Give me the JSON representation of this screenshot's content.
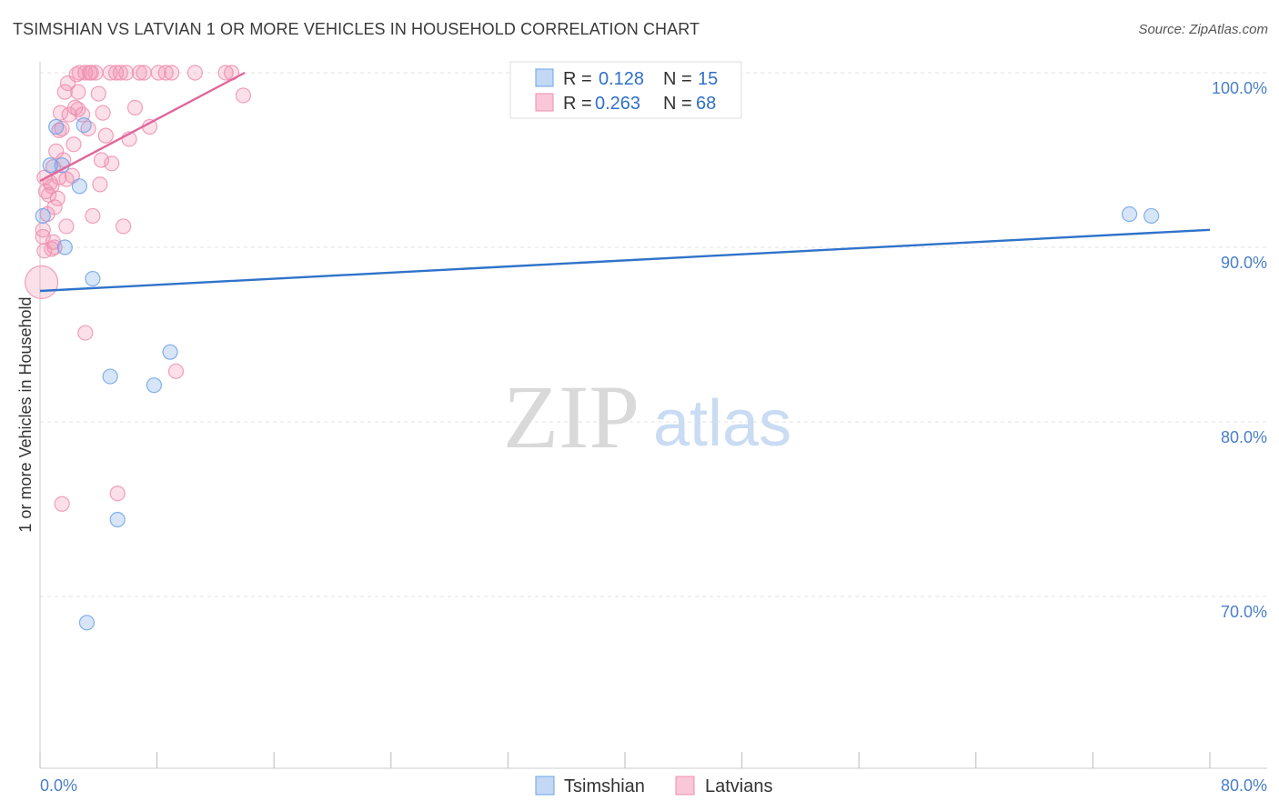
{
  "title": "TSIMSHIAN VS LATVIAN 1 OR MORE VEHICLES IN HOUSEHOLD CORRELATION CHART",
  "source": "Source: ZipAtlas.com",
  "watermark": {
    "zip": "ZIP",
    "atlas": "atlas"
  },
  "colors": {
    "tsimshian": "#6fa3e6",
    "latvians": "#ef8fb0",
    "tsimshian_line": "#2f73c9",
    "latvians_line": "#e0679a"
  },
  "chart_data": {
    "type": "scatter",
    "ylabel": "1 or more Vehicles in Household",
    "xlim": [
      0,
      80
    ],
    "ylim": [
      60,
      100
    ],
    "x_tick_labels": [
      "0.0%",
      "80.0%"
    ],
    "y_ticks": [
      {
        "value": 100,
        "label": "100.0%"
      },
      {
        "value": 90,
        "label": "90.0%"
      },
      {
        "value": 80,
        "label": "80.0%"
      },
      {
        "value": 70,
        "label": "70.0%"
      }
    ],
    "grid": true,
    "legend": {
      "position": "top-center",
      "entries": [
        {
          "r_label": "R =",
          "r_value": "0.128",
          "n_label": "N =",
          "n_value": "15"
        },
        {
          "r_label": "R =",
          "r_value": "0.263",
          "n_label": "N =",
          "n_value": "68"
        }
      ]
    },
    "series": [
      {
        "name": "Tsimshian",
        "trend": [
          [
            0,
            87.5
          ],
          [
            80,
            91.0
          ]
        ],
        "points": [
          [
            0.2,
            91.8
          ],
          [
            0.7,
            94.7
          ],
          [
            1.1,
            96.9
          ],
          [
            1.5,
            94.7
          ],
          [
            1.7,
            90.0
          ],
          [
            2.7,
            93.5
          ],
          [
            3.0,
            97.0
          ],
          [
            3.6,
            88.2
          ],
          [
            4.8,
            82.6
          ],
          [
            5.3,
            74.4
          ],
          [
            7.8,
            82.1
          ],
          [
            8.9,
            84.0
          ],
          [
            3.2,
            68.5
          ],
          [
            74.5,
            91.9
          ],
          [
            76.0,
            91.8
          ]
        ]
      },
      {
        "name": "Latvians",
        "trend": [
          [
            0,
            93.8
          ],
          [
            14,
            100.0
          ]
        ],
        "points": [
          [
            0.1,
            88.0
          ],
          [
            0.2,
            91.0
          ],
          [
            0.3,
            89.8
          ],
          [
            0.4,
            93.2
          ],
          [
            0.5,
            91.9
          ],
          [
            0.6,
            93.0
          ],
          [
            0.7,
            93.7
          ],
          [
            0.8,
            89.9
          ],
          [
            0.9,
            90.3
          ],
          [
            1.0,
            90.0
          ],
          [
            1.1,
            95.5
          ],
          [
            1.2,
            92.8
          ],
          [
            1.3,
            94.0
          ],
          [
            1.4,
            97.7
          ],
          [
            1.5,
            96.8
          ],
          [
            1.6,
            95.0
          ],
          [
            1.7,
            98.9
          ],
          [
            1.8,
            93.9
          ],
          [
            1.9,
            99.4
          ],
          [
            2.0,
            97.6
          ],
          [
            2.2,
            94.1
          ],
          [
            2.3,
            95.9
          ],
          [
            2.4,
            98.0
          ],
          [
            2.5,
            99.9
          ],
          [
            2.6,
            98.9
          ],
          [
            2.7,
            100.0
          ],
          [
            2.9,
            97.6
          ],
          [
            3.1,
            100.0
          ],
          [
            3.3,
            96.8
          ],
          [
            3.5,
            100.0
          ],
          [
            3.6,
            91.8
          ],
          [
            3.8,
            100.0
          ],
          [
            4.0,
            98.8
          ],
          [
            4.1,
            93.6
          ],
          [
            4.2,
            95.0
          ],
          [
            4.3,
            97.7
          ],
          [
            4.5,
            96.4
          ],
          [
            4.8,
            100.0
          ],
          [
            4.9,
            94.8
          ],
          [
            5.2,
            100.0
          ],
          [
            5.5,
            100.0
          ],
          [
            5.7,
            91.2
          ],
          [
            5.9,
            100.0
          ],
          [
            6.1,
            96.2
          ],
          [
            6.5,
            98.0
          ],
          [
            6.8,
            100.0
          ],
          [
            7.5,
            96.9
          ],
          [
            8.1,
            100.0
          ],
          [
            8.6,
            100.0
          ],
          [
            9.0,
            100.0
          ],
          [
            10.6,
            100.0
          ],
          [
            12.7,
            100.0
          ],
          [
            13.1,
            100.0
          ],
          [
            13.9,
            98.7
          ],
          [
            0.8,
            93.5
          ],
          [
            1.3,
            96.7
          ],
          [
            1.5,
            75.3
          ],
          [
            3.1,
            85.1
          ],
          [
            5.3,
            75.9
          ],
          [
            9.3,
            82.9
          ],
          [
            0.3,
            94.0
          ],
          [
            1.0,
            92.3
          ],
          [
            1.8,
            91.2
          ],
          [
            2.6,
            97.9
          ],
          [
            0.9,
            94.6
          ],
          [
            3.4,
            100.0
          ],
          [
            7.1,
            100.0
          ],
          [
            0.2,
            90.6
          ]
        ]
      }
    ]
  }
}
